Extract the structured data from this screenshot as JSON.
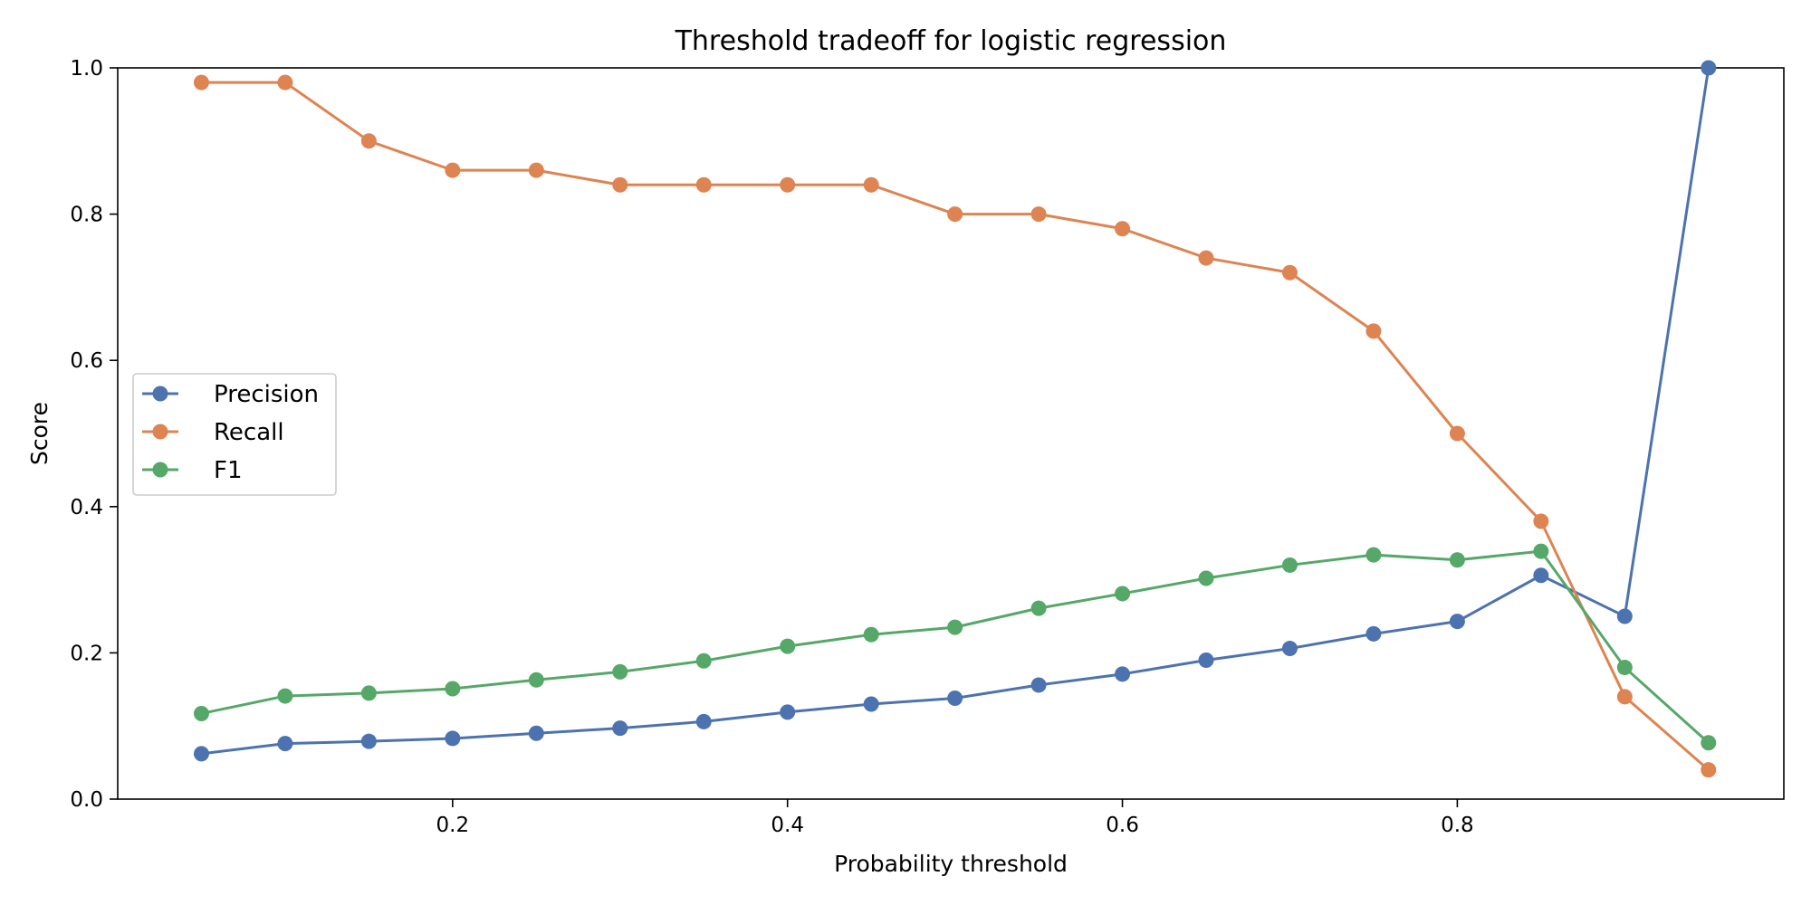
{
  "chart_data": {
    "type": "line",
    "title": "Threshold tradeoff for logistic regression",
    "xlabel": "Probability threshold",
    "ylabel": "Score",
    "xlim": [
      0.0,
      0.995
    ],
    "ylim": [
      0.0,
      1.0
    ],
    "x_ticks": [
      0.2,
      0.4,
      0.6,
      0.8
    ],
    "x_tick_labels": [
      "0.2",
      "0.4",
      "0.6",
      "0.8"
    ],
    "y_ticks": [
      0.0,
      0.2,
      0.4,
      0.6,
      0.8,
      1.0
    ],
    "y_tick_labels": [
      "0.0",
      "0.2",
      "0.4",
      "0.6",
      "0.8",
      "1.0"
    ],
    "grid": false,
    "legend_position": "center-left",
    "x": [
      0.05,
      0.1,
      0.15,
      0.2,
      0.25,
      0.3,
      0.35,
      0.4,
      0.45,
      0.5,
      0.55,
      0.6,
      0.65,
      0.7,
      0.75,
      0.8,
      0.85,
      0.9,
      0.95
    ],
    "series": [
      {
        "name": "Precision",
        "color": "#4c72b0",
        "values": [
          0.062,
          0.076,
          0.079,
          0.083,
          0.09,
          0.097,
          0.106,
          0.119,
          0.13,
          0.138,
          0.156,
          0.171,
          0.19,
          0.206,
          0.226,
          0.243,
          0.306,
          0.25,
          1.0
        ]
      },
      {
        "name": "Recall",
        "color": "#dd8452",
        "values": [
          0.98,
          0.98,
          0.9,
          0.86,
          0.86,
          0.84,
          0.84,
          0.84,
          0.84,
          0.8,
          0.8,
          0.78,
          0.74,
          0.72,
          0.64,
          0.5,
          0.38,
          0.14,
          0.04
        ]
      },
      {
        "name": "F1",
        "color": "#55a868",
        "values": [
          0.117,
          0.141,
          0.145,
          0.151,
          0.163,
          0.174,
          0.189,
          0.209,
          0.225,
          0.235,
          0.261,
          0.281,
          0.302,
          0.32,
          0.334,
          0.327,
          0.339,
          0.18,
          0.077
        ]
      }
    ]
  }
}
